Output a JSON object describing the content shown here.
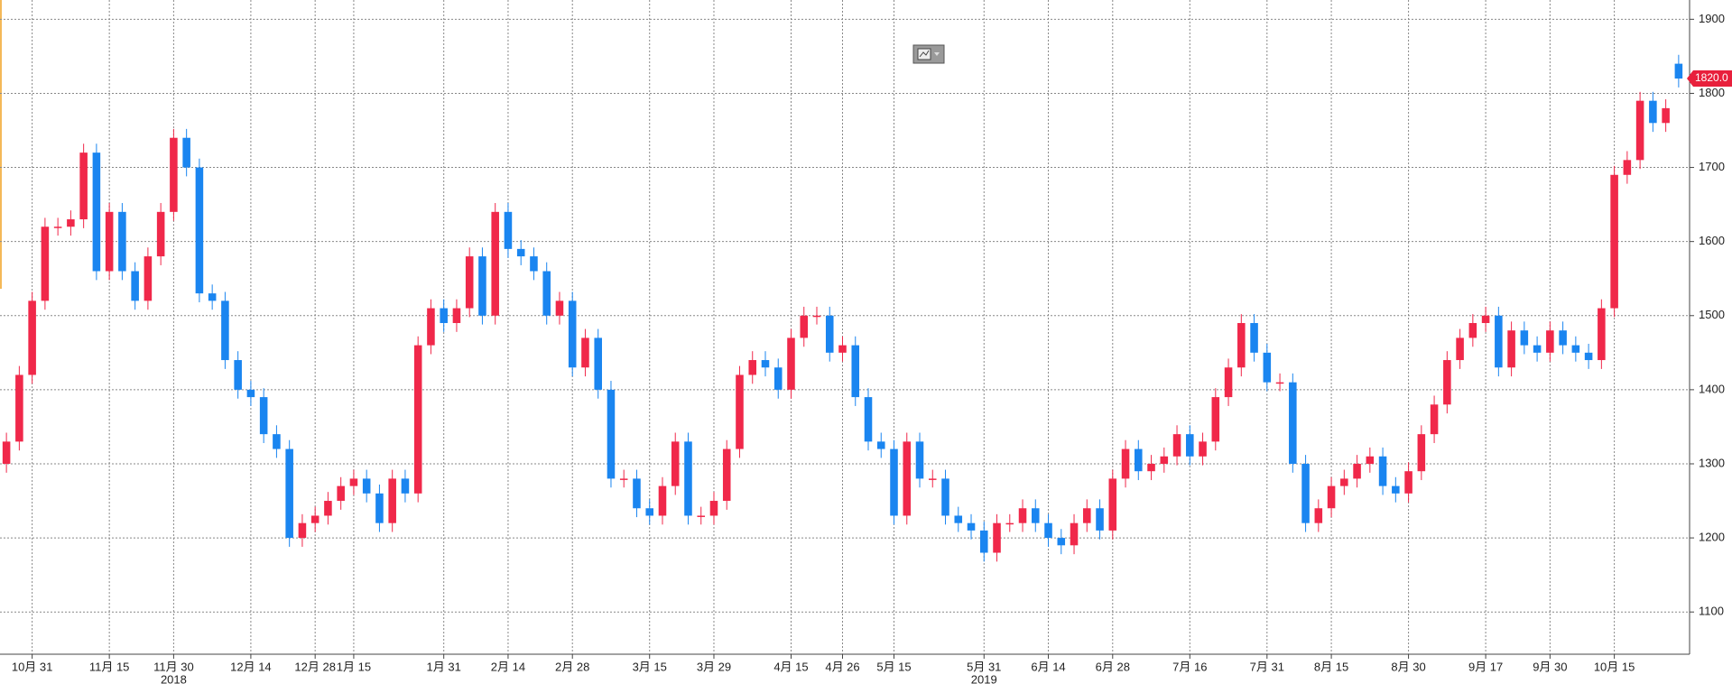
{
  "chart_data": {
    "type": "candlestick",
    "up_color": "#f0284a",
    "down_color": "#1a85f0",
    "grid": true,
    "ylim": [
      1043,
      1926
    ],
    "yticks": [
      1100,
      1200,
      1300,
      1400,
      1500,
      1600,
      1700,
      1800,
      1900
    ],
    "last_price": {
      "value": 1820,
      "label": "1820.0"
    },
    "categories": [
      null,
      null,
      "10月 31",
      null,
      null,
      null,
      null,
      null,
      "11月 15",
      null,
      null,
      null,
      null,
      "11月 30",
      null,
      null,
      null,
      null,
      null,
      "12月 14",
      null,
      null,
      null,
      null,
      "12月 28",
      null,
      null,
      "1月 15",
      null,
      null,
      null,
      null,
      null,
      null,
      "1月 31",
      null,
      null,
      null,
      null,
      "2月 14",
      null,
      null,
      null,
      null,
      "2月 28",
      null,
      null,
      null,
      null,
      null,
      "3月 15",
      null,
      null,
      null,
      null,
      "3月 29",
      null,
      null,
      null,
      null,
      null,
      "4月 15",
      null,
      null,
      null,
      "4月 26",
      null,
      null,
      null,
      "5月 15",
      null,
      null,
      null,
      null,
      null,
      null,
      "5月 31",
      null,
      null,
      null,
      null,
      "6月 14",
      null,
      null,
      null,
      null,
      "6月 28",
      null,
      null,
      null,
      null,
      null,
      "7月 16",
      null,
      null,
      null,
      null,
      null,
      "7月 31",
      null,
      null,
      null,
      null,
      "8月 15",
      null,
      null,
      null,
      null,
      null,
      "8月 30",
      null,
      null,
      null,
      null,
      null,
      "9月 17",
      null,
      null,
      null,
      null,
      "9月 30",
      null,
      null,
      null,
      null,
      "10月 15",
      null,
      null,
      null,
      null,
      null
    ],
    "years": [
      null,
      null,
      null,
      null,
      null,
      null,
      null,
      null,
      null,
      null,
      null,
      null,
      null,
      "2018",
      null,
      null,
      null,
      null,
      null,
      null,
      null,
      null,
      null,
      null,
      null,
      null,
      null,
      null,
      null,
      null,
      null,
      null,
      null,
      null,
      null,
      null,
      null,
      null,
      null,
      null,
      null,
      null,
      null,
      null,
      null,
      null,
      null,
      null,
      null,
      null,
      null,
      null,
      null,
      null,
      null,
      null,
      null,
      null,
      null,
      null,
      null,
      null,
      null,
      null,
      null,
      null,
      null,
      null,
      null,
      null,
      null,
      null,
      null,
      null,
      null,
      null,
      "2019",
      null,
      null,
      null,
      null,
      null,
      null,
      null,
      null,
      null,
      null,
      null,
      null,
      null,
      null,
      null,
      null,
      null,
      null,
      null,
      null,
      null,
      null,
      null,
      null,
      null,
      null,
      null,
      null,
      null,
      null,
      null,
      null,
      null,
      null,
      null,
      null,
      null,
      null,
      null,
      null,
      null,
      null,
      null,
      null,
      null,
      null,
      null,
      null,
      null,
      null,
      null,
      null,
      null,
      null
    ],
    "open": [
      1300,
      1330,
      1420,
      1520,
      1620,
      1620,
      1630,
      1720,
      1560,
      1640,
      1560,
      1520,
      1580,
      1640,
      1740,
      1700,
      1530,
      1520,
      1440,
      1400,
      1390,
      1340,
      1320,
      1200,
      1220,
      1230,
      1250,
      1270,
      1280,
      1260,
      1220,
      1280,
      1260,
      1460,
      1510,
      1490,
      1510,
      1580,
      1500,
      1640,
      1590,
      1580,
      1560,
      1500,
      1520,
      1430,
      1470,
      1400,
      1280,
      1280,
      1240,
      1230,
      1270,
      1330,
      1230,
      1230,
      1250,
      1320,
      1420,
      1440,
      1430,
      1400,
      1470,
      1500,
      1500,
      1450,
      1460,
      1390,
      1330,
      1320,
      1230,
      1330,
      1280,
      1280,
      1230,
      1220,
      1210,
      1180,
      1220,
      1220,
      1240,
      1220,
      1200,
      1190,
      1220,
      1240,
      1210,
      1280,
      1320,
      1290,
      1300,
      1310,
      1340,
      1310,
      1330,
      1390,
      1430,
      1490,
      1450,
      1410,
      1410,
      1300,
      1220,
      1240,
      1270,
      1280,
      1300,
      1310,
      1270,
      1260,
      1290,
      1340,
      1380,
      1440,
      1470,
      1490,
      1500,
      1430,
      1480,
      1460,
      1450,
      1480,
      1460,
      1450,
      1440,
      1510,
      1690,
      1710,
      1790,
      1760,
      1840
    ],
    "high": [
      1342,
      1432,
      1532,
      1632,
      1632,
      1642,
      1732,
      1732,
      1652,
      1652,
      1572,
      1592,
      1652,
      1752,
      1752,
      1712,
      1542,
      1532,
      1452,
      1412,
      1402,
      1352,
      1332,
      1232,
      1242,
      1262,
      1282,
      1292,
      1292,
      1272,
      1292,
      1292,
      1472,
      1522,
      1522,
      1522,
      1592,
      1592,
      1652,
      1652,
      1602,
      1592,
      1572,
      1532,
      1532,
      1482,
      1482,
      1412,
      1292,
      1292,
      1252,
      1282,
      1342,
      1342,
      1242,
      1262,
      1332,
      1432,
      1452,
      1452,
      1442,
      1482,
      1512,
      1512,
      1512,
      1472,
      1472,
      1402,
      1342,
      1332,
      1342,
      1342,
      1292,
      1292,
      1242,
      1232,
      1222,
      1232,
      1232,
      1252,
      1252,
      1232,
      1212,
      1232,
      1252,
      1252,
      1292,
      1332,
      1332,
      1312,
      1322,
      1352,
      1352,
      1342,
      1402,
      1442,
      1502,
      1502,
      1462,
      1422,
      1422,
      1312,
      1252,
      1282,
      1292,
      1312,
      1322,
      1322,
      1282,
      1302,
      1352,
      1392,
      1452,
      1482,
      1502,
      1512,
      1512,
      1492,
      1492,
      1472,
      1492,
      1492,
      1472,
      1462,
      1522,
      1702,
      1722,
      1802,
      1802,
      1792,
      1852
    ],
    "low": [
      1288,
      1318,
      1408,
      1508,
      1608,
      1608,
      1618,
      1548,
      1548,
      1548,
      1508,
      1508,
      1568,
      1628,
      1688,
      1518,
      1508,
      1428,
      1388,
      1378,
      1328,
      1308,
      1188,
      1188,
      1208,
      1218,
      1238,
      1258,
      1248,
      1208,
      1208,
      1248,
      1248,
      1448,
      1478,
      1478,
      1498,
      1488,
      1488,
      1578,
      1568,
      1548,
      1488,
      1488,
      1418,
      1418,
      1388,
      1268,
      1268,
      1228,
      1218,
      1218,
      1258,
      1218,
      1218,
      1218,
      1238,
      1308,
      1408,
      1418,
      1388,
      1388,
      1458,
      1488,
      1438,
      1438,
      1378,
      1318,
      1308,
      1218,
      1218,
      1268,
      1268,
      1218,
      1208,
      1198,
      1168,
      1168,
      1208,
      1208,
      1208,
      1188,
      1178,
      1178,
      1208,
      1198,
      1198,
      1268,
      1278,
      1278,
      1288,
      1298,
      1298,
      1298,
      1318,
      1378,
      1418,
      1438,
      1398,
      1398,
      1288,
      1208,
      1208,
      1228,
      1258,
      1268,
      1288,
      1258,
      1248,
      1248,
      1278,
      1328,
      1368,
      1428,
      1458,
      1478,
      1418,
      1418,
      1448,
      1438,
      1438,
      1448,
      1438,
      1428,
      1428,
      1498,
      1678,
      1698,
      1748,
      1748,
      1808
    ],
    "close": [
      1330,
      1420,
      1520,
      1620,
      1620,
      1630,
      1720,
      1560,
      1640,
      1560,
      1520,
      1580,
      1640,
      1740,
      1700,
      1530,
      1520,
      1440,
      1400,
      1390,
      1340,
      1320,
      1200,
      1220,
      1230,
      1250,
      1270,
      1280,
      1260,
      1220,
      1280,
      1260,
      1460,
      1510,
      1490,
      1510,
      1580,
      1500,
      1640,
      1590,
      1580,
      1560,
      1500,
      1520,
      1430,
      1470,
      1400,
      1280,
      1280,
      1240,
      1230,
      1270,
      1330,
      1230,
      1230,
      1250,
      1320,
      1420,
      1440,
      1430,
      1400,
      1470,
      1500,
      1500,
      1450,
      1460,
      1390,
      1330,
      1320,
      1230,
      1330,
      1280,
      1280,
      1230,
      1220,
      1210,
      1180,
      1220,
      1220,
      1240,
      1220,
      1200,
      1190,
      1220,
      1240,
      1210,
      1280,
      1320,
      1290,
      1300,
      1310,
      1340,
      1310,
      1330,
      1390,
      1430,
      1490,
      1450,
      1410,
      1410,
      1300,
      1220,
      1240,
      1270,
      1280,
      1300,
      1310,
      1270,
      1260,
      1290,
      1340,
      1380,
      1440,
      1470,
      1490,
      1500,
      1430,
      1480,
      1460,
      1450,
      1480,
      1460,
      1450,
      1440,
      1510,
      1690,
      1710,
      1790,
      1760,
      1780,
      1820
    ]
  }
}
